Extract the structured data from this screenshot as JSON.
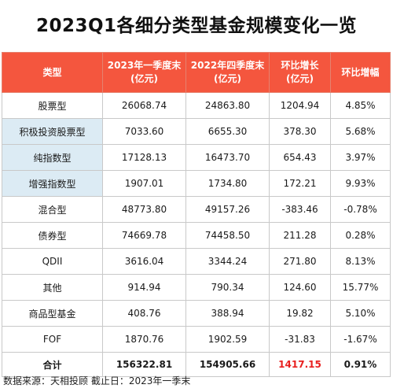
{
  "title": "2023Q1各细分类型基金规模变化一览",
  "table": {
    "headers": [
      {
        "line1": "类型",
        "line2": ""
      },
      {
        "line1": "2023年一季度末",
        "line2": "(亿元)"
      },
      {
        "line1": "2022年四季度末",
        "line2": "(亿元)"
      },
      {
        "line1": "环比增长",
        "line2": "(亿元)"
      },
      {
        "line1": "环比增幅",
        "line2": ""
      }
    ],
    "rows": [
      {
        "type": "股票型",
        "q1_2023": "26068.74",
        "q4_2022": "24863.80",
        "change": "1204.94",
        "pct": "4.85%",
        "highlight": false
      },
      {
        "type": "积极投资股票型",
        "q1_2023": "7033.60",
        "q4_2022": "6655.30",
        "change": "378.30",
        "pct": "5.68%",
        "highlight": true
      },
      {
        "type": "纯指数型",
        "q1_2023": "17128.13",
        "q4_2022": "16473.70",
        "change": "654.43",
        "pct": "3.97%",
        "highlight": true
      },
      {
        "type": "增强指数型",
        "q1_2023": "1907.01",
        "q4_2022": "1734.80",
        "change": "172.21",
        "pct": "9.93%",
        "highlight": true
      },
      {
        "type": "混合型",
        "q1_2023": "48773.80",
        "q4_2022": "49157.26",
        "change": "-383.46",
        "pct": "-0.78%",
        "highlight": false
      },
      {
        "type": "债券型",
        "q1_2023": "74669.78",
        "q4_2022": "74458.50",
        "change": "211.28",
        "pct": "0.28%",
        "highlight": false
      },
      {
        "type": "QDII",
        "q1_2023": "3616.04",
        "q4_2022": "3344.24",
        "change": "271.80",
        "pct": "8.13%",
        "highlight": false
      },
      {
        "type": "其他",
        "q1_2023": "914.94",
        "q4_2022": "790.34",
        "change": "124.60",
        "pct": "15.77%",
        "highlight": false
      },
      {
        "type": "商品型基金",
        "q1_2023": "408.76",
        "q4_2022": "388.94",
        "change": "19.82",
        "pct": "5.10%",
        "highlight": false
      },
      {
        "type": "FOF",
        "q1_2023": "1870.76",
        "q4_2022": "1902.59",
        "change": "-31.83",
        "pct": "-1.67%",
        "highlight": false
      }
    ],
    "total": {
      "type": "合计",
      "q1_2023": "156322.81",
      "q4_2022": "154905.66",
      "change": "1417.15",
      "pct": "0.91%"
    }
  },
  "footer": "数据来源：天相投顾  截止日：2023年一季末",
  "colors": {
    "header_bg": "#f4563e",
    "highlight_bg": "#dcebf4",
    "total_change_text": "#e8201f"
  }
}
